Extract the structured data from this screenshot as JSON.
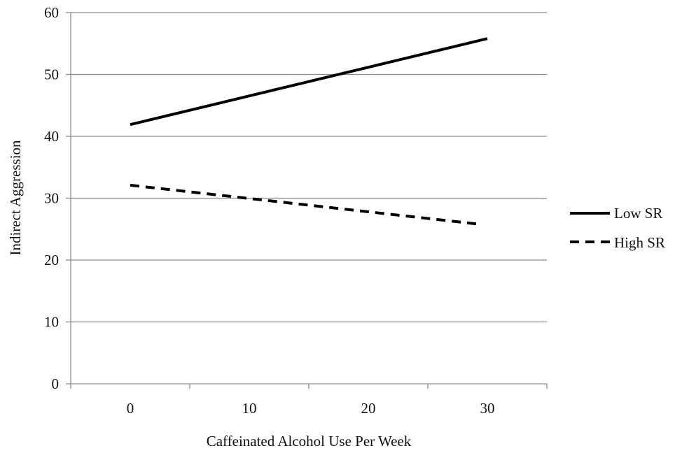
{
  "chart_data": {
    "type": "line",
    "title": "",
    "xlabel": "Caffeinated Alcohol Use Per Week",
    "ylabel": "Indirect Aggression",
    "x_ticks": [
      0,
      10,
      20,
      30
    ],
    "x_tick_labels": [
      "0",
      "10",
      "20",
      "30"
    ],
    "y_ticks": [
      0,
      10,
      20,
      30,
      40,
      50,
      60
    ],
    "y_tick_labels": [
      "0",
      "10",
      "20",
      "30",
      "40",
      "50",
      "60"
    ],
    "xlim": [
      -5,
      35
    ],
    "ylim": [
      0,
      60
    ],
    "grid": "horizontal",
    "legend_position": "right",
    "series": [
      {
        "name": "Low SR",
        "style": "solid",
        "color": "#000000",
        "x": [
          0,
          30
        ],
        "y": [
          41.9,
          55.8
        ]
      },
      {
        "name": "High SR",
        "style": "dashed",
        "color": "#000000",
        "x": [
          0,
          29.3
        ],
        "y": [
          32.1,
          25.8
        ]
      }
    ]
  },
  "colors": {
    "grid": "#8c8c8c",
    "axis": "#8c8c8c",
    "text": "#111111"
  }
}
